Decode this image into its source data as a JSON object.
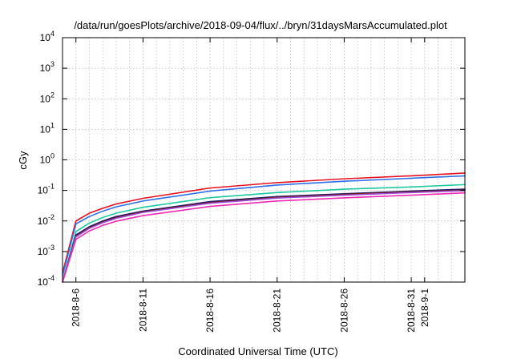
{
  "chart_data": {
    "type": "line",
    "title": "/data/run/goesPlots/archive/2018-09-04/flux/../bryn/31daysMarsAccumulated.plot",
    "xlabel": "Coordinated Universal Time (UTC)",
    "ylabel": "cGy",
    "x_scale": "date",
    "y_scale": "log",
    "xlim": [
      "2018-08-05",
      "2018-09-04"
    ],
    "ylim": [
      0.0001,
      10000
    ],
    "x_ticks": [
      "2018-8-6",
      "2018-8-11",
      "2018-8-16",
      "2018-8-21",
      "2018-8-26",
      "2018-8-31",
      "2018-9-1"
    ],
    "y_ticks": [
      {
        "value": 0.0001,
        "base": "10",
        "exp": "-4"
      },
      {
        "value": 0.001,
        "base": "10",
        "exp": "-3"
      },
      {
        "value": 0.01,
        "base": "10",
        "exp": "-2"
      },
      {
        "value": 0.1,
        "base": "10",
        "exp": "-1"
      },
      {
        "value": 1,
        "base": "10",
        "exp": "0"
      },
      {
        "value": 10,
        "base": "10",
        "exp": "1"
      },
      {
        "value": 100,
        "base": "10",
        "exp": "2"
      },
      {
        "value": 1000,
        "base": "10",
        "exp": "3"
      },
      {
        "value": 10000,
        "base": "10",
        "exp": "4"
      }
    ],
    "grid": true,
    "x": [
      "2018-08-05",
      "2018-08-06",
      "2018-08-07",
      "2018-08-08",
      "2018-08-09",
      "2018-08-11",
      "2018-08-16",
      "2018-08-21",
      "2018-08-26",
      "2018-08-31",
      "2018-09-04"
    ],
    "series": [
      {
        "color": "#e8101e",
        "values": [
          0.0002,
          0.01,
          0.018,
          0.026,
          0.036,
          0.055,
          0.12,
          0.18,
          0.24,
          0.3,
          0.37
        ]
      },
      {
        "color": "#2f6fe8",
        "values": [
          0.00016,
          0.008,
          0.014,
          0.021,
          0.029,
          0.045,
          0.095,
          0.15,
          0.2,
          0.25,
          0.3
        ]
      },
      {
        "color": "#1ec8a0",
        "values": [
          0.0001,
          0.0045,
          0.0085,
          0.013,
          0.018,
          0.028,
          0.058,
          0.085,
          0.11,
          0.13,
          0.155
        ]
      },
      {
        "color": "#1a1a6e",
        "values": [
          0.0001,
          0.0035,
          0.0065,
          0.01,
          0.014,
          0.021,
          0.043,
          0.063,
          0.078,
          0.095,
          0.11
        ]
      },
      {
        "color": "#7a1a1a",
        "values": [
          0.0001,
          0.0032,
          0.006,
          0.0093,
          0.013,
          0.02,
          0.04,
          0.059,
          0.074,
          0.09,
          0.103
        ]
      },
      {
        "color": "#9e4fd8",
        "values": [
          0.0001,
          0.003,
          0.0057,
          0.0088,
          0.0122,
          0.019,
          0.038,
          0.056,
          0.07,
          0.085,
          0.098
        ]
      },
      {
        "color": "#f02ab4",
        "values": [
          0.0001,
          0.0025,
          0.0047,
          0.0072,
          0.0098,
          0.015,
          0.03,
          0.045,
          0.057,
          0.07,
          0.083
        ]
      }
    ]
  }
}
